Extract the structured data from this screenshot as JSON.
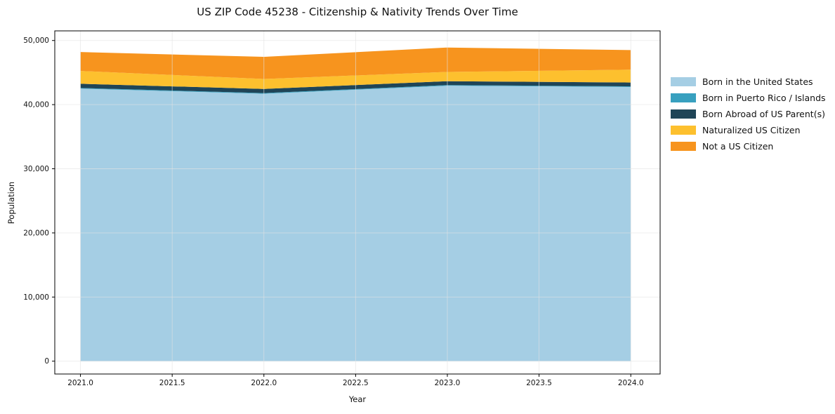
{
  "chart_data": {
    "type": "area",
    "stacked": true,
    "title": "US ZIP Code 45238 - Citizenship & Nativity Trends Over Time",
    "xlabel": "Year",
    "ylabel": "Population",
    "x": [
      2021,
      2022,
      2023,
      2024
    ],
    "series": [
      {
        "key": "born-in-us",
        "name": "Born in the United States",
        "color": "#a5cee4",
        "values": [
          42500,
          41700,
          42950,
          42750
        ]
      },
      {
        "key": "born-in-puerto-rico-islands",
        "name": "Born in Puerto Rico / Islands",
        "color": "#38a0bf",
        "values": [
          100,
          100,
          100,
          100
        ]
      },
      {
        "key": "born-abroad-us-parents",
        "name": "Born Abroad of US Parent(s)",
        "color": "#1f4557",
        "values": [
          650,
          650,
          600,
          600
        ]
      },
      {
        "key": "naturalized-us-citizen",
        "name": "Naturalized US Citizen",
        "color": "#fdc02e",
        "values": [
          2000,
          1550,
          1450,
          2000
        ]
      },
      {
        "key": "not-a-us-citizen",
        "name": "Not a US Citizen",
        "color": "#f7941e",
        "values": [
          2950,
          3450,
          3800,
          3050
        ]
      }
    ],
    "xlim": [
      2020.86,
      2024.16
    ],
    "ylim": [
      -2000,
      51500
    ],
    "xticks": {
      "values": [
        2021.0,
        2021.5,
        2022.0,
        2022.5,
        2023.0,
        2023.5,
        2024.0
      ],
      "labels": [
        "2021.0",
        "2021.5",
        "2022.0",
        "2022.5",
        "2023.0",
        "2023.5",
        "2024.0"
      ]
    },
    "yticks": {
      "values": [
        0,
        10000,
        20000,
        30000,
        40000,
        50000
      ],
      "labels": [
        "0",
        "10,000",
        "20,000",
        "30,000",
        "40,000",
        "50,000"
      ]
    },
    "grid": true,
    "legend_position": "right-outside"
  },
  "styles": {
    "background": "#ffffff",
    "spine_color": "#000000",
    "grid_color": "#e2e2e2",
    "text_color": "#111111"
  }
}
